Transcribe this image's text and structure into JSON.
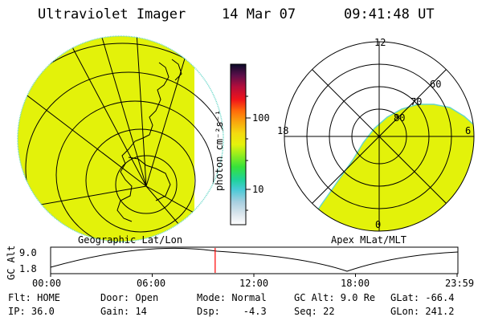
{
  "header": {
    "title": "Ultraviolet Imager",
    "date": "14 Mar 07",
    "time": "09:41:48 UT"
  },
  "left_panel": {
    "caption": "Geographic Lat/Lon"
  },
  "right_panel": {
    "caption": "Apex MLat/MLT",
    "mlt_labels": {
      "top": "12",
      "left": "18",
      "right": "6",
      "bottom": "0"
    },
    "lat_labels": [
      "60",
      "70",
      "80"
    ]
  },
  "colorbar": {
    "unit_label": "photon cm⁻²s⁻¹",
    "tick_labels": [
      "100",
      "10"
    ]
  },
  "orbit_plot": {
    "ylabel": "GC Alt",
    "yticks": [
      "9.0",
      "1.8"
    ],
    "xticks": [
      "00:00",
      "06:00",
      "12:00",
      "18:00",
      "23:59"
    ],
    "current_time_fraction": 0.404
  },
  "info": {
    "row1": [
      "Flt: HOME",
      "Door: Open",
      "Mode: Normal",
      "GC Alt: 9.0 Re",
      "GLat: -66.4"
    ],
    "row2": [
      "IP: 36.0",
      "Gain: 14",
      "Dsp:    -4.3",
      "Seq: 22",
      "GLon: 241.2"
    ]
  },
  "colors": {
    "aurora": "#e3f20a",
    "aurora_edge": "#66d6c8",
    "time_marker": "#ff0000"
  }
}
